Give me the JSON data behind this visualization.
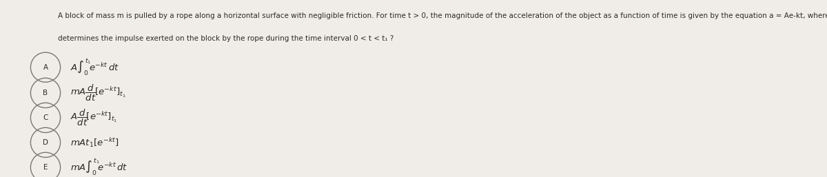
{
  "background_color": "#f0ede8",
  "text_color": "#2a2a2a",
  "title_line1": "A block of mass m is pulled by a rope along a horizontal surface with negligible friction. For time t > 0, the magnitude of the acceleration of the object as a function of time is given by the equation a = Ae",
  "title_superscript": "-kt",
  "title_line1_suffix": ", where A and k are positive constants. Which of the following ex",
  "title_line2": "determines the impulse exerted on the block by the rope during the time interval 0 < t < t₁ ?",
  "options": [
    {
      "label": "A",
      "expr": "$A\\int_0^{t_1}\\!e^{-kt}\\,dt$"
    },
    {
      "label": "B",
      "expr": "$mA\\dfrac{d}{dt}\\!\\left[e^{-kt}\\right]_{t_1}$"
    },
    {
      "label": "C",
      "expr": "$A\\dfrac{d}{dt}\\!\\left[e^{-kt}\\right]_{t_1}$"
    },
    {
      "label": "D",
      "expr": "$mAt_1\\left[e^{-kt}\\right]$"
    },
    {
      "label": "E",
      "expr": "$mA\\int_0^{t_1}\\!e^{-kt}\\,dt$"
    }
  ],
  "circle_color": "#777777",
  "font_size_title": 7.5,
  "font_size_options": 9.5,
  "font_size_label": 7.5
}
